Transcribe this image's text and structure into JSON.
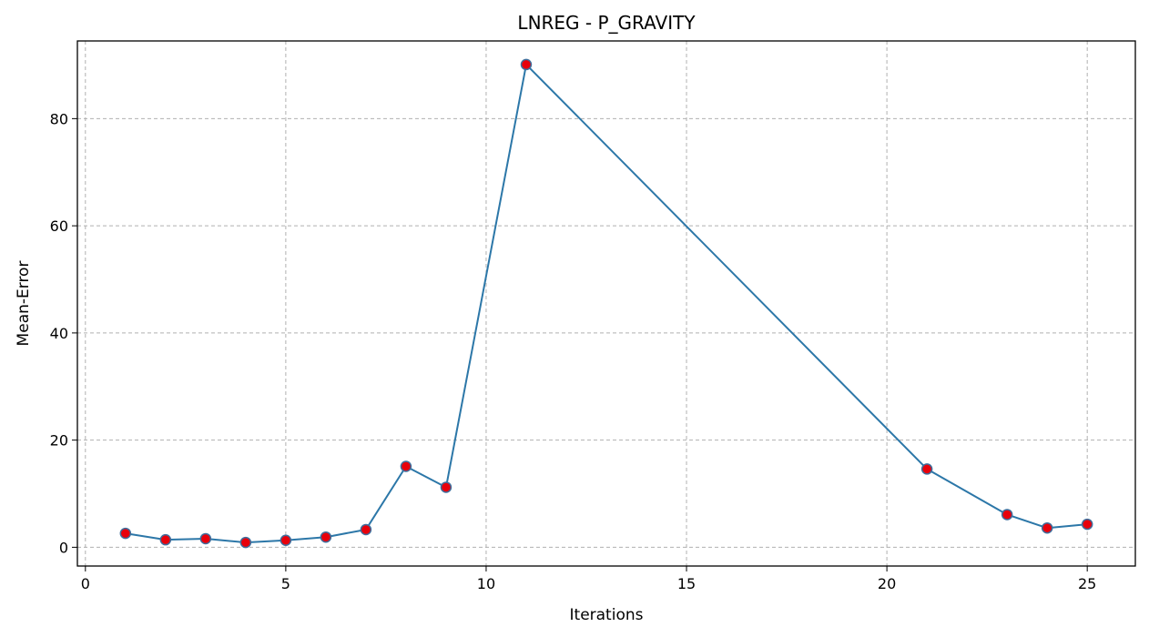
{
  "chart_data": {
    "type": "line",
    "title": "LNREG - P_GRAVITY",
    "xlabel": "Iterations",
    "ylabel": "Mean-Error",
    "xlim": [
      -0.2,
      26.2
    ],
    "ylim": [
      -3.5,
      94.5
    ],
    "xticks": [
      0,
      5,
      10,
      15,
      20,
      25
    ],
    "yticks": [
      0,
      20,
      40,
      60,
      80
    ],
    "grid": true,
    "legend": "none",
    "series": [
      {
        "line_color": "#2c77a8",
        "marker_face": "#e8000b",
        "marker_edge": "#3f6e9c",
        "x": [
          1,
          2,
          3,
          4,
          5,
          6,
          7,
          8,
          9,
          11,
          21,
          23,
          24,
          25
        ],
        "y": [
          2.6,
          1.4,
          1.6,
          0.9,
          1.3,
          1.9,
          3.3,
          15.1,
          11.2,
          90.1,
          14.6,
          6.1,
          3.6,
          4.3
        ]
      }
    ]
  }
}
